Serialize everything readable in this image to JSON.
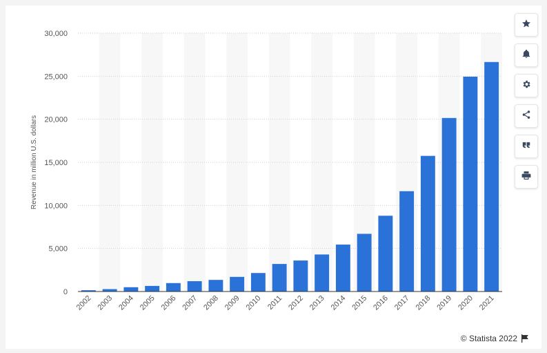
{
  "chart_data": {
    "type": "bar",
    "categories": [
      "2002",
      "2003",
      "2004",
      "2005",
      "2006",
      "2007",
      "2008",
      "2009",
      "2010",
      "2011",
      "2012",
      "2013",
      "2014",
      "2015",
      "2016",
      "2017",
      "2018",
      "2019",
      "2020",
      "2021"
    ],
    "values": [
      150,
      280,
      500,
      650,
      980,
      1200,
      1350,
      1700,
      2150,
      3200,
      3600,
      4300,
      5450,
      6700,
      8800,
      11650,
      15750,
      20150,
      24950,
      26650
    ],
    "ylabel": "Revenue in million U.S. dollars",
    "ylim": [
      0,
      30000
    ],
    "yticks": [
      0,
      5000,
      10000,
      15000,
      20000,
      25000,
      30000
    ],
    "ytick_labels": [
      "0",
      "5,000",
      "10,000",
      "15,000",
      "20,000",
      "25,000",
      "30,000"
    ],
    "bar_color": "#2b72d8",
    "grid": true,
    "alternating_column_shading": true
  },
  "toolbar": {
    "icons": [
      "star-icon",
      "bell-icon",
      "gear-icon",
      "share-icon",
      "quote-icon",
      "print-icon"
    ]
  },
  "credit": {
    "text": "© Statista 2022"
  }
}
